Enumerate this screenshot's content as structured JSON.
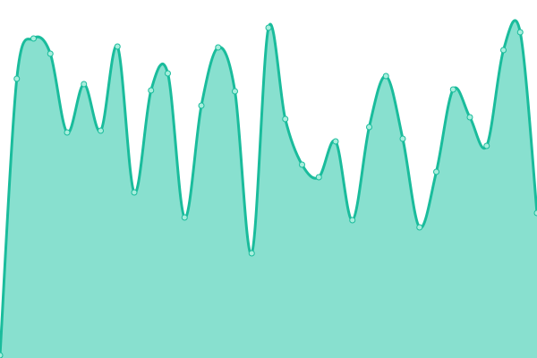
{
  "chart_data": {
    "type": "area",
    "title": "",
    "xlabel": "",
    "ylabel": "",
    "x": [
      0,
      1,
      2,
      3,
      4,
      5,
      6,
      7,
      8,
      9,
      10,
      11,
      12,
      13,
      14,
      15,
      16,
      17,
      18,
      19,
      20,
      21,
      22,
      23,
      24,
      25,
      26,
      27,
      28,
      29,
      30,
      31,
      32
    ],
    "values": [
      3,
      312,
      357,
      340,
      252,
      306,
      254,
      348,
      185,
      299,
      318,
      157,
      282,
      347,
      298,
      117,
      369,
      267,
      216,
      202,
      242,
      154,
      258,
      315,
      245,
      146,
      208,
      300,
      269,
      237,
      344,
      364,
      162
    ],
    "ylim": [
      0,
      400
    ],
    "xlim": [
      0,
      32
    ],
    "grid": false,
    "axes_visible": false,
    "smooth": true,
    "colors": {
      "line": "#1abc9c",
      "fill": "#88e0cf",
      "point_fill": "#a8eedd",
      "point_stroke": "#1abc9c"
    }
  }
}
